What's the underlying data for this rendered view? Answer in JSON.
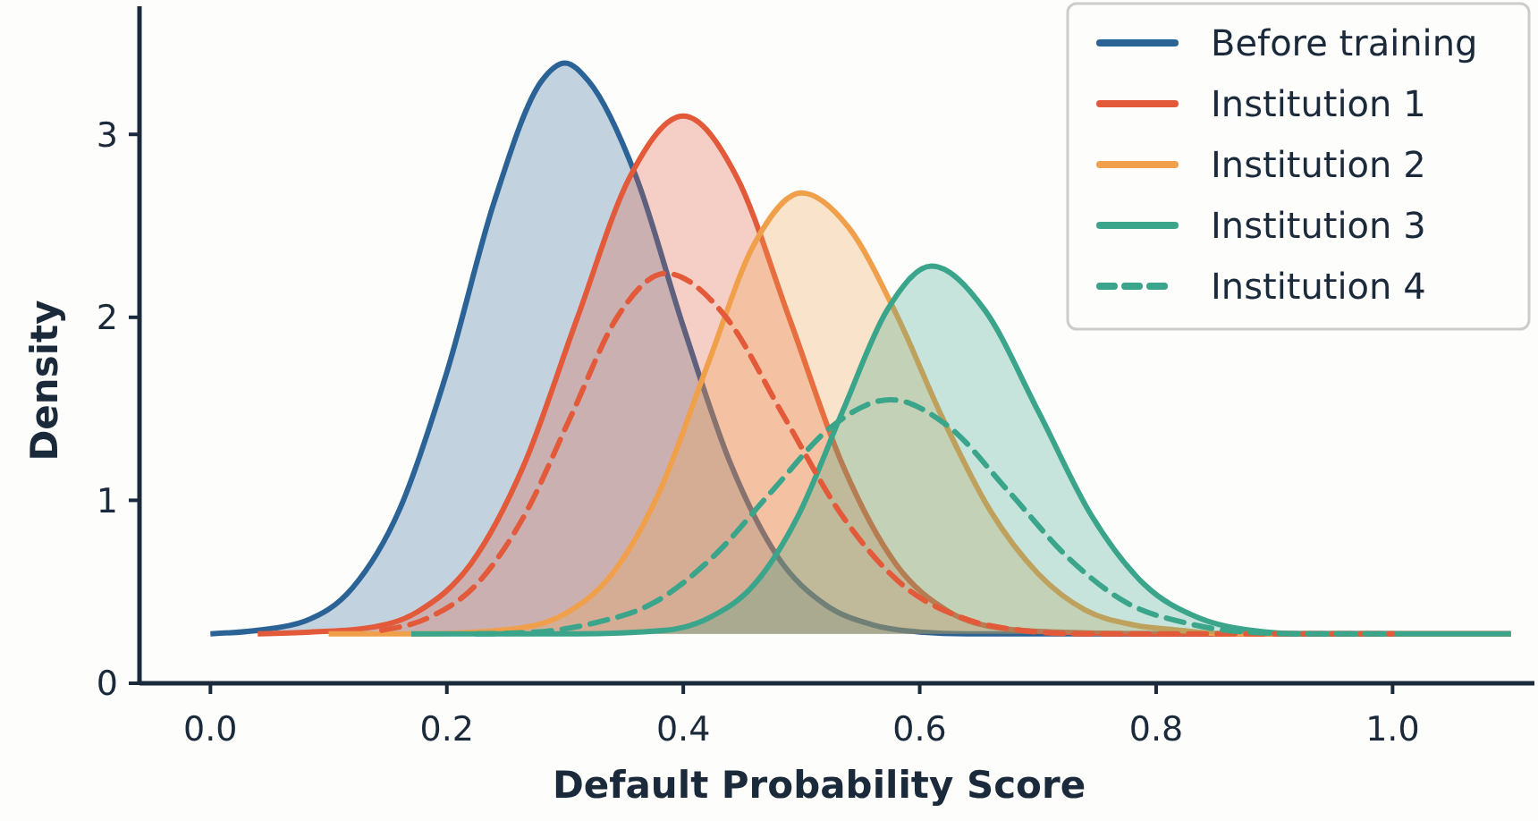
{
  "chart_data": {
    "type": "area",
    "xlabel": "Default Probability Score",
    "ylabel": "Density",
    "xlim": [
      -0.06,
      1.12
    ],
    "ylim": [
      0,
      3.7
    ],
    "xticks": [
      {
        "value": 0,
        "label": "0.0"
      },
      0.2,
      0.4,
      0.6,
      0.8,
      {
        "value": 1,
        "label": "1.0"
      }
    ],
    "yticks": [
      0,
      1,
      2,
      3
    ],
    "grid": false,
    "legend": "top right",
    "series": [
      {
        "name": "Before training",
        "color": "#2b6397",
        "line_style": "solid",
        "x": [
          0,
          0.04,
          0.08,
          0.12,
          0.16,
          0.2,
          0.24,
          0.28,
          0.3,
          0.32,
          0.36,
          0.4,
          0.44,
          0.48,
          0.52,
          0.56,
          0.6,
          0.64,
          0.7,
          0.8,
          0.9,
          1,
          1.1
        ],
        "values": [
          0.27,
          0.29,
          0.34,
          0.52,
          0.95,
          1.7,
          2.63,
          3.29,
          3.39,
          3.29,
          2.77,
          1.95,
          1.2,
          0.69,
          0.43,
          0.32,
          0.28,
          0.27,
          0.27,
          0.27,
          0.27,
          0.27,
          0.27
        ]
      },
      {
        "name": "Institution 1",
        "color": "#e35a3a",
        "line_style": "solid",
        "x": [
          0.04,
          0.085,
          0.13,
          0.175,
          0.22,
          0.265,
          0.31,
          0.355,
          0.4,
          0.445,
          0.49,
          0.535,
          0.58,
          0.625,
          0.67,
          0.715,
          0.8,
          0.9,
          1,
          1.1
        ],
        "values": [
          0.27,
          0.28,
          0.3,
          0.39,
          0.65,
          1.19,
          1.99,
          2.77,
          3.1,
          2.77,
          1.99,
          1.19,
          0.65,
          0.39,
          0.3,
          0.28,
          0.27,
          0.27,
          0.27,
          0.27
        ]
      },
      {
        "name": "Institution 2",
        "color": "#f0a04b",
        "line_style": "solid",
        "x": [
          0.1,
          0.18,
          0.26,
          0.3,
          0.34,
          0.38,
          0.42,
          0.46,
          0.5,
          0.54,
          0.58,
          0.62,
          0.66,
          0.7,
          0.74,
          0.78,
          0.82,
          0.86,
          0.9,
          1,
          1.1
        ],
        "values": [
          0.27,
          0.27,
          0.3,
          0.38,
          0.6,
          1.05,
          1.73,
          2.4,
          2.68,
          2.49,
          2.02,
          1.44,
          0.94,
          0.6,
          0.4,
          0.32,
          0.29,
          0.27,
          0.27,
          0.27,
          0.27
        ]
      },
      {
        "name": "Institution 3",
        "color": "#3aa58a",
        "line_style": "solid",
        "x": [
          0.17,
          0.31,
          0.385,
          0.4225,
          0.46,
          0.4975,
          0.535,
          0.5725,
          0.61,
          0.655,
          0.7,
          0.745,
          0.79,
          0.835,
          0.88,
          0.925,
          1,
          1.1
        ],
        "values": [
          0.27,
          0.27,
          0.29,
          0.36,
          0.54,
          0.92,
          1.49,
          2.04,
          2.28,
          2.04,
          1.49,
          0.92,
          0.54,
          0.36,
          0.29,
          0.27,
          0.27,
          0.27
        ]
      },
      {
        "color": "#e35a3a",
        "type": "line",
        "line_style": "dashed",
        "x": [
          0.145,
          0.185,
          0.225,
          0.265,
          0.305,
          0.345,
          0.385,
          0.435,
          0.485,
          0.535,
          0.585,
          0.635,
          0.685,
          0.735,
          0.8,
          0.9,
          1
        ],
        "values": [
          0.29,
          0.36,
          0.54,
          0.91,
          1.46,
          2.01,
          2.24,
          2.01,
          1.46,
          0.91,
          0.54,
          0.36,
          0.29,
          0.27,
          0.27,
          0.27,
          0.27
        ]
      },
      {
        "name": "Institution 4",
        "color": "#3aa58a",
        "type": "line",
        "line_style": "dashed",
        "x": [
          0.225,
          0.275,
          0.325,
          0.375,
          0.425,
          0.475,
          0.525,
          0.575,
          0.625,
          0.675,
          0.725,
          0.775,
          0.825,
          0.875,
          0.925,
          1
        ],
        "values": [
          0.27,
          0.28,
          0.33,
          0.44,
          0.69,
          1.05,
          1.4,
          1.55,
          1.4,
          1.05,
          0.69,
          0.44,
          0.33,
          0.28,
          0.27,
          0.27
        ]
      }
    ]
  }
}
